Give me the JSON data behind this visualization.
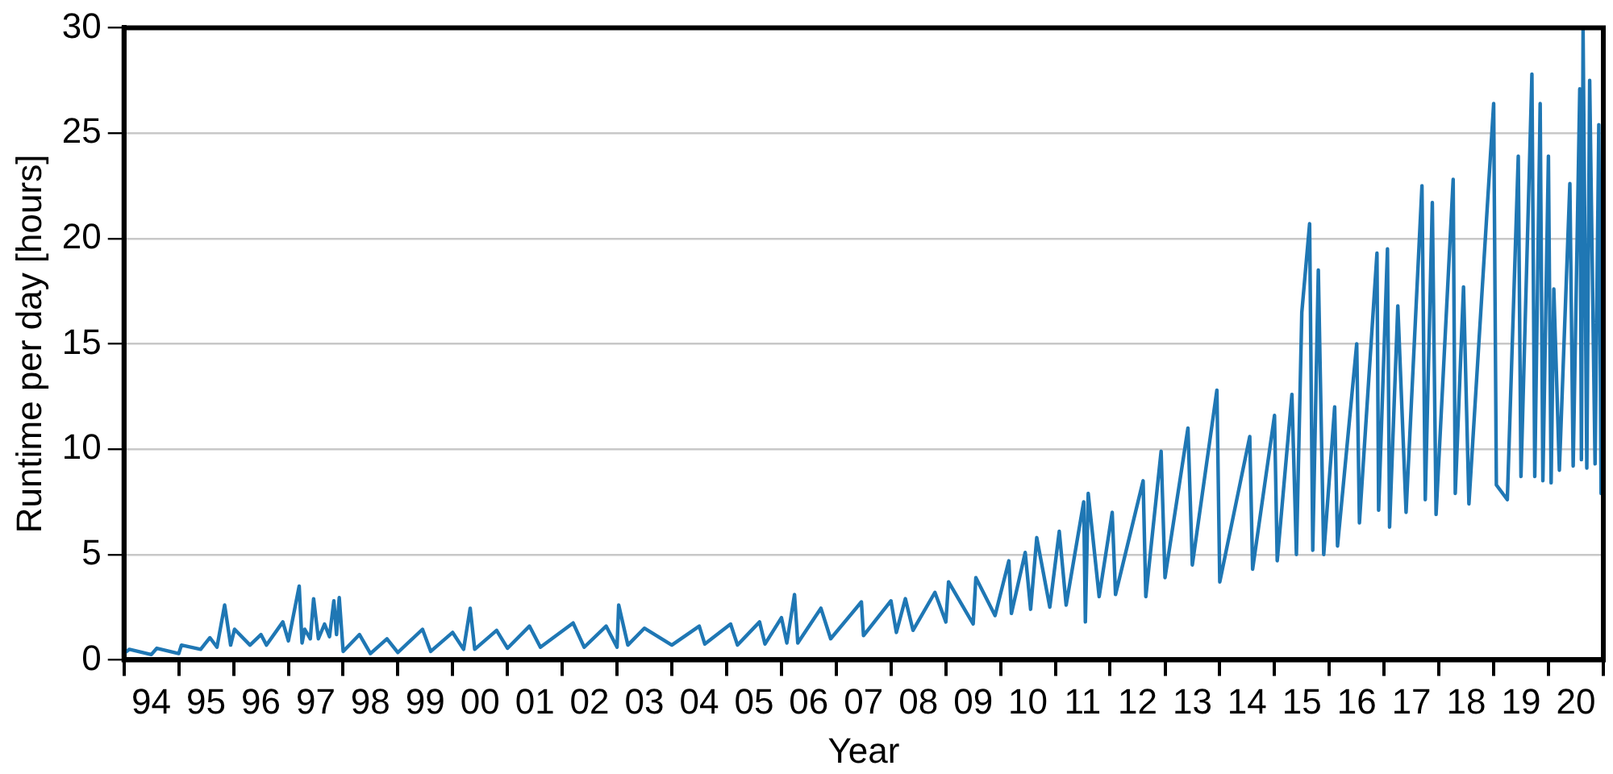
{
  "chart_data": {
    "type": "line",
    "xlabel": "Year",
    "ylabel": "Runtime per day [hours]",
    "xlim": [
      "1994-01-01",
      "2021-01-01"
    ],
    "ylim": [
      0,
      30
    ],
    "yticks": [
      0,
      5,
      10,
      15,
      20,
      25,
      30
    ],
    "xticks": [
      {
        "value": "1994-01-01",
        "label": null
      },
      {
        "value": "1994-07-02",
        "label": "94"
      },
      {
        "value": "1995-01-01",
        "label": null
      },
      {
        "value": "1995-07-02",
        "label": "95"
      },
      {
        "value": "1996-01-01",
        "label": null
      },
      {
        "value": "1996-07-02",
        "label": "96"
      },
      {
        "value": "1997-01-01",
        "label": null
      },
      {
        "value": "1997-07-02",
        "label": "97"
      },
      {
        "value": "1998-01-01",
        "label": null
      },
      {
        "value": "1998-07-02",
        "label": "98"
      },
      {
        "value": "1999-01-01",
        "label": null
      },
      {
        "value": "1999-07-02",
        "label": "99"
      },
      {
        "value": "2000-01-01",
        "label": null
      },
      {
        "value": "2000-07-02",
        "label": "00"
      },
      {
        "value": "2001-01-01",
        "label": null
      },
      {
        "value": "2001-07-02",
        "label": "01"
      },
      {
        "value": "2002-01-01",
        "label": null
      },
      {
        "value": "2002-07-02",
        "label": "02"
      },
      {
        "value": "2003-01-01",
        "label": null
      },
      {
        "value": "2003-07-02",
        "label": "03"
      },
      {
        "value": "2004-01-01",
        "label": null
      },
      {
        "value": "2004-07-02",
        "label": "04"
      },
      {
        "value": "2005-01-01",
        "label": null
      },
      {
        "value": "2005-07-02",
        "label": "05"
      },
      {
        "value": "2006-01-01",
        "label": null
      },
      {
        "value": "2006-07-02",
        "label": "06"
      },
      {
        "value": "2007-01-01",
        "label": null
      },
      {
        "value": "2007-07-02",
        "label": "07"
      },
      {
        "value": "2008-01-01",
        "label": null
      },
      {
        "value": "2008-07-02",
        "label": "08"
      },
      {
        "value": "2009-01-01",
        "label": null
      },
      {
        "value": "2009-07-02",
        "label": "09"
      },
      {
        "value": "2010-01-01",
        "label": null
      },
      {
        "value": "2010-07-02",
        "label": "10"
      },
      {
        "value": "2011-01-01",
        "label": null
      },
      {
        "value": "2011-07-02",
        "label": "11"
      },
      {
        "value": "2012-01-01",
        "label": null
      },
      {
        "value": "2012-07-02",
        "label": "12"
      },
      {
        "value": "2013-01-01",
        "label": null
      },
      {
        "value": "2013-07-02",
        "label": "13"
      },
      {
        "value": "2014-01-01",
        "label": null
      },
      {
        "value": "2014-07-02",
        "label": "14"
      },
      {
        "value": "2015-01-01",
        "label": null
      },
      {
        "value": "2015-07-02",
        "label": "15"
      },
      {
        "value": "2016-01-01",
        "label": null
      },
      {
        "value": "2016-07-02",
        "label": "16"
      },
      {
        "value": "2017-01-01",
        "label": null
      },
      {
        "value": "2017-07-02",
        "label": "17"
      },
      {
        "value": "2018-01-01",
        "label": null
      },
      {
        "value": "2018-07-02",
        "label": "18"
      },
      {
        "value": "2019-01-01",
        "label": null
      },
      {
        "value": "2019-07-02",
        "label": "19"
      },
      {
        "value": "2020-01-01",
        "label": null
      },
      {
        "value": "2020-07-02",
        "label": "20"
      },
      {
        "value": "2021-01-01",
        "label": null
      }
    ],
    "grid": "y",
    "legend": false,
    "marker": "none",
    "line_style": "solid",
    "series": [
      {
        "color": "#1f77b4",
        "x": [
          "1994-01-01",
          "1994-02-06",
          "1994-07-02",
          "1994-08-08",
          "1995-01-01",
          "1995-01-19",
          "1995-05-27",
          "1995-07-28",
          "1995-09-13",
          "1995-11-03",
          "1995-12-13",
          "1996-01-08",
          "1996-04-20",
          "1996-07-02",
          "1996-08-08",
          "1996-11-25",
          "1997-01-01",
          "1997-03-14",
          "1997-04-02",
          "1997-04-20",
          "1997-05-27",
          "1997-06-18",
          "1997-07-20",
          "1997-08-30",
          "1997-10-02",
          "1997-10-31",
          "1997-11-18",
          "1997-12-06",
          "1998-01-01",
          "1998-04-20",
          "1998-07-02",
          "1998-10-20",
          "1999-01-01",
          "1999-06-14",
          "1999-08-08",
          "2000-01-01",
          "2000-03-14",
          "2000-04-27",
          "2000-05-27",
          "2000-10-20",
          "2001-01-01",
          "2001-05-27",
          "2001-08-08",
          "2002-03-14",
          "2002-05-27",
          "2002-10-20",
          "2003-01-01",
          "2003-01-12",
          "2003-03-14",
          "2003-07-02",
          "2004-01-01",
          "2004-07-02",
          "2004-08-08",
          "2005-01-27",
          "2005-03-14",
          "2005-08-08",
          "2005-09-13",
          "2006-01-01",
          "2006-02-06",
          "2006-03-29",
          "2006-04-20",
          "2006-09-21",
          "2006-11-25",
          "2007-06-18",
          "2007-07-02",
          "2008-01-01",
          "2008-02-06",
          "2008-04-06",
          "2008-05-27",
          "2008-10-20",
          "2009-01-01",
          "2009-01-19",
          "2009-07-02",
          "2009-07-20",
          "2009-11-25",
          "2010-02-25",
          "2010-03-14",
          "2010-06-14",
          "2010-07-20",
          "2010-08-30",
          "2010-11-25",
          "2011-01-27",
          "2011-03-14",
          "2011-07-09",
          "2011-07-20",
          "2011-08-08",
          "2011-10-20",
          "2012-01-15",
          "2012-02-06",
          "2012-08-08",
          "2012-08-26",
          "2012-12-06",
          "2013-01-01",
          "2013-06-03",
          "2013-07-02",
          "2013-12-13",
          "2014-01-01",
          "2014-07-20",
          "2014-08-08",
          "2015-01-01",
          "2015-01-19",
          "2015-04-27",
          "2015-05-27",
          "2015-07-02",
          "2015-08-23",
          "2015-09-13",
          "2015-10-20",
          "2015-11-25",
          "2016-02-06",
          "2016-02-25",
          "2016-07-02",
          "2016-07-20",
          "2016-11-14",
          "2016-11-25",
          "2017-01-23",
          "2017-02-06",
          "2017-04-02",
          "2017-05-27",
          "2017-09-10",
          "2017-10-02",
          "2017-11-18",
          "2017-12-13",
          "2018-04-06",
          "2018-04-20",
          "2018-06-14",
          "2018-07-20",
          "2019-01-01",
          "2019-01-19",
          "2019-04-02",
          "2019-06-14",
          "2019-07-02",
          "2019-09-13",
          "2019-10-02",
          "2019-11-07",
          "2019-11-25",
          "2020-01-01",
          "2020-01-19",
          "2020-02-06",
          "2020-03-14",
          "2020-05-23",
          "2020-06-14",
          "2020-07-28",
          "2020-08-08",
          "2020-08-19",
          "2020-09-13",
          "2020-10-02",
          "2020-11-07",
          "2020-12-02",
          "2020-12-17",
          "2021-01-01"
        ],
        "values": [
          0.3,
          0.5,
          0.25,
          0.55,
          0.3,
          0.7,
          0.5,
          1.05,
          0.6,
          2.6,
          0.7,
          1.45,
          0.7,
          1.2,
          0.7,
          1.8,
          0.9,
          3.5,
          0.8,
          1.45,
          1.0,
          2.9,
          1.0,
          1.7,
          1.1,
          2.8,
          1.2,
          2.95,
          0.4,
          1.2,
          0.3,
          1.0,
          0.35,
          1.45,
          0.4,
          1.3,
          0.5,
          2.45,
          0.5,
          1.4,
          0.55,
          1.6,
          0.6,
          1.75,
          0.6,
          1.6,
          0.6,
          2.6,
          0.7,
          1.5,
          0.7,
          1.6,
          0.75,
          1.7,
          0.7,
          1.8,
          0.75,
          2.0,
          0.8,
          3.1,
          0.8,
          2.45,
          1.0,
          2.75,
          1.15,
          2.8,
          1.3,
          2.9,
          1.4,
          3.2,
          1.8,
          3.7,
          1.7,
          3.9,
          2.1,
          4.7,
          2.2,
          5.1,
          2.4,
          5.8,
          2.5,
          6.1,
          2.6,
          7.5,
          1.8,
          7.9,
          3.0,
          7.0,
          3.1,
          8.5,
          3.0,
          9.9,
          3.9,
          11.0,
          4.5,
          12.8,
          3.7,
          10.6,
          4.3,
          11.6,
          4.7,
          12.6,
          5.0,
          16.5,
          20.7,
          5.2,
          18.5,
          5.0,
          12.0,
          5.4,
          15.0,
          6.5,
          19.3,
          7.1,
          19.5,
          6.3,
          16.8,
          7.0,
          22.5,
          7.6,
          21.7,
          6.9,
          22.8,
          7.9,
          17.7,
          7.4,
          26.4,
          8.3,
          7.6,
          23.9,
          8.7,
          27.8,
          8.7,
          26.4,
          8.5,
          23.9,
          8.4,
          17.6,
          9.0,
          22.6,
          9.2,
          27.1,
          9.5,
          29.9,
          9.1,
          27.5,
          9.3,
          25.4,
          7.9,
          23.3
        ]
      }
    ]
  }
}
